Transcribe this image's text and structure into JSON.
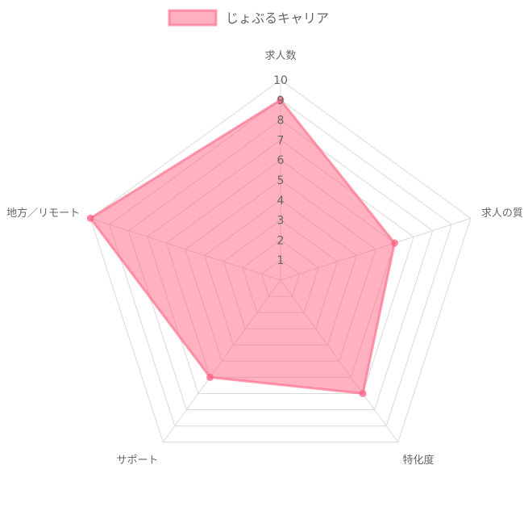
{
  "chart_data": {
    "type": "radar",
    "categories": [
      "求人数",
      "求人の質",
      "特化度",
      "サポート",
      "地方／リモート"
    ],
    "series": [
      {
        "name": "じょぶるキャリア",
        "values": [
          9,
          6,
          7,
          6,
          10
        ]
      }
    ],
    "rlim": [
      0,
      10
    ],
    "ticks": [
      "1",
      "2",
      "3",
      "4",
      "5",
      "6",
      "7",
      "8",
      "9",
      "10"
    ],
    "grid": true,
    "legend": "top",
    "colors": {
      "fill": "#ff6384",
      "stroke": "#ff6384",
      "grid": "#d9d9d9",
      "text": "#666666"
    }
  }
}
